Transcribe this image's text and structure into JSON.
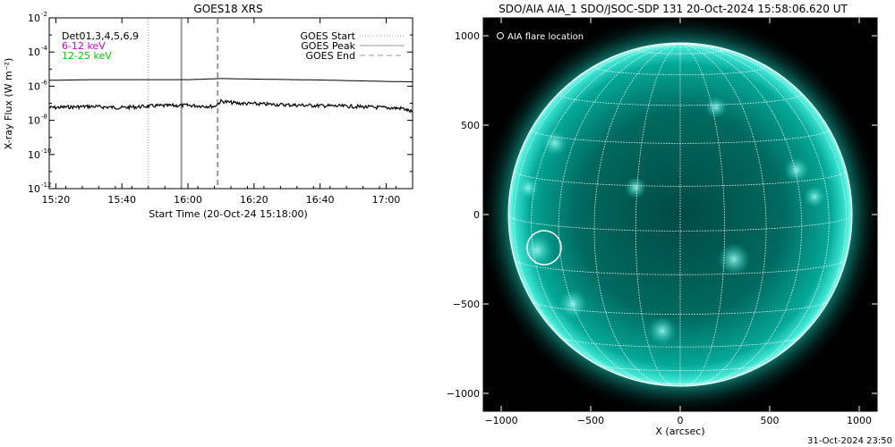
{
  "footer_timestamp": "31-Oct-2024 23:50",
  "chart_data": [
    {
      "type": "line",
      "title": "GOES18 XRS",
      "xlabel": "Start Time (20-Oct-24 15:18:00)",
      "ylabel": "X-ray Flux (W m⁻²)",
      "y_scale": "log",
      "xlim": [
        "15:18",
        "17:08"
      ],
      "ylim": [
        1e-12,
        0.01
      ],
      "x_ticks": [
        "15:20",
        "15:40",
        "16:00",
        "16:20",
        "16:40",
        "17:00"
      ],
      "y_ticks": [
        {
          "value": 1e-12,
          "mantissa": "10",
          "exp": "-12"
        },
        {
          "value": 1e-10,
          "mantissa": "10",
          "exp": "-10"
        },
        {
          "value": 1e-08,
          "mantissa": "10",
          "exp": "-8"
        },
        {
          "value": 1e-06,
          "mantissa": "10",
          "exp": "-6"
        },
        {
          "value": 0.0001,
          "mantissa": "10",
          "exp": "-4"
        },
        {
          "value": 0.01,
          "mantissa": "10",
          "exp": "-2"
        }
      ],
      "detector_text": "Det01,3,4,5,6,9",
      "channel_legend": [
        {
          "label": "6-12 keV",
          "color": "#d400d4"
        },
        {
          "label": "12-25 keV",
          "color": "#00cc00"
        }
      ],
      "event_legend": [
        {
          "label": "GOES Start",
          "dash": "1,2",
          "color": "#999999"
        },
        {
          "label": "GOES Peak",
          "dash": "",
          "color": "#999999"
        },
        {
          "label": "GOES End",
          "dash": "6,4",
          "color": "#999999"
        }
      ],
      "event_lines": [
        {
          "name": "start",
          "time": "15:48"
        },
        {
          "name": "peak",
          "time": "15:58"
        },
        {
          "name": "end",
          "time": "16:09"
        }
      ],
      "series": [
        {
          "name": "long",
          "color": "#000000",
          "x": [
            "15:18",
            "15:30",
            "15:45",
            "16:00",
            "16:10",
            "16:20",
            "16:40",
            "17:00",
            "17:08"
          ],
          "y": [
            2.2e-06,
            2.4e-06,
            2.4e-06,
            2.4e-06,
            2.8e-06,
            2.6e-06,
            2.3e-06,
            1.9e-06,
            1.8e-06
          ]
        },
        {
          "name": "short",
          "color": "#000000",
          "x": [
            "15:18",
            "15:30",
            "15:40",
            "15:50",
            "16:00",
            "16:08",
            "16:10",
            "16:15",
            "16:30",
            "16:50",
            "17:05",
            "17:08"
          ],
          "y": [
            5.5e-08,
            6.5e-08,
            5.5e-08,
            7e-08,
            7.5e-08,
            6.5e-08,
            1.3e-07,
            1e-07,
            8e-08,
            6.5e-08,
            5e-08,
            3e-08
          ]
        }
      ]
    },
    {
      "type": "image",
      "title": "SDO/AIA AIA_1 SDO/JSOC-SDP 131 20-Oct-2024 15:58:06.620 UT",
      "xlabel": "X (arcsec)",
      "ylabel": "",
      "xlim": [
        -1100,
        1100
      ],
      "ylim": [
        -1100,
        1100
      ],
      "x_ticks": [
        -1000,
        -500,
        0,
        500,
        1000
      ],
      "y_ticks": [
        -1000,
        -500,
        0,
        500,
        1000
      ],
      "legend": "AIA flare location",
      "solar_radius_arcsec": 960,
      "flare_location": {
        "x": -760,
        "y": -185,
        "radius": 95
      },
      "colors": {
        "disk": "#00c2b0",
        "background": "#000000",
        "grid": "#ffffff",
        "flare_marker": "#ffffff"
      }
    }
  ]
}
